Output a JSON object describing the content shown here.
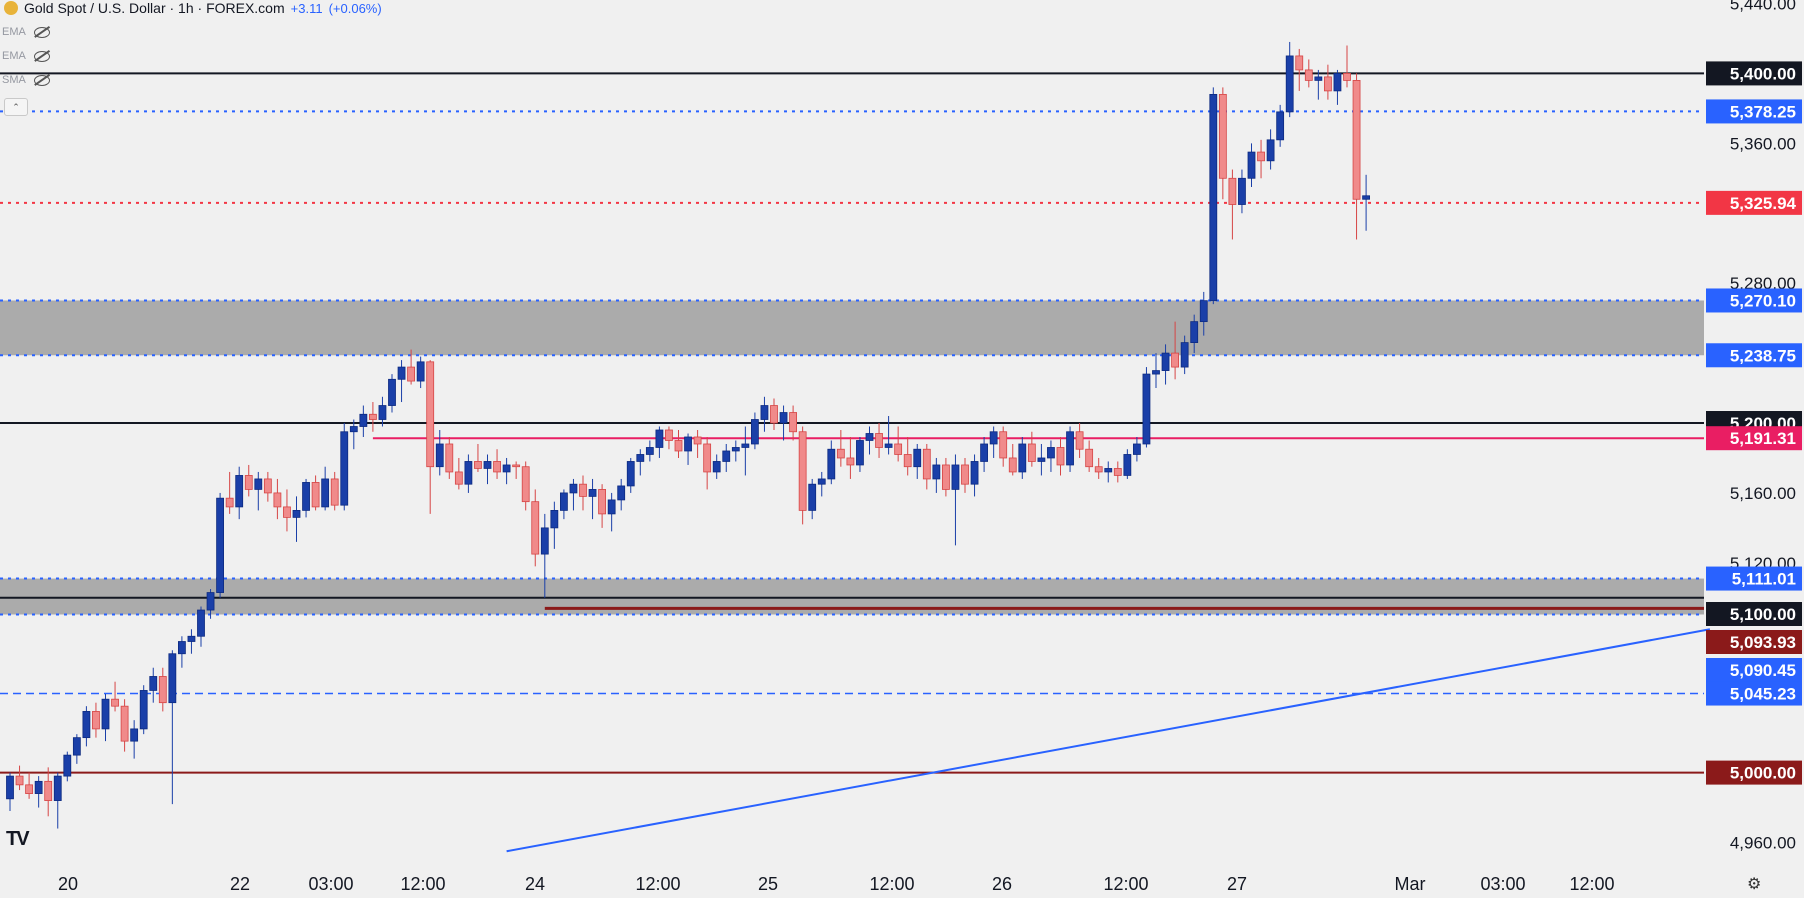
{
  "header": {
    "title": "Gold Spot / U.S. Dollar · 1h · FOREX.com",
    "change": "+3.11",
    "change_pct": "(+0.06%)"
  },
  "indicators": [
    {
      "label": "EMA",
      "icon": "eye-off-icon"
    },
    {
      "label": "EMA",
      "icon": "eye-off-icon"
    },
    {
      "label": "SMA",
      "icon": "eye-off-icon"
    }
  ],
  "icons": {
    "logo": "tradingview-logo",
    "settings": "gear-icon",
    "collapse": "chevron-up-down-icon"
  },
  "logo_text": "TV",
  "chart_data": {
    "type": "candlestick",
    "symbol": "Gold Spot / U.S. Dollar",
    "timeframe": "1h",
    "price_axis": {
      "ticks": [
        4960,
        5120,
        5160,
        5280,
        5360,
        5440
      ],
      "tick_labels": [
        "4,960.00",
        "5,120.00",
        "5,160.00",
        "5,280.00",
        "5,360.00",
        "5,440.00"
      ],
      "range": [
        4950,
        5442
      ]
    },
    "time_axis": {
      "labels": [
        "20",
        "22",
        "03:00",
        "12:00",
        "24",
        "12:00",
        "25",
        "12:00",
        "26",
        "12:00",
        "27",
        "Mar",
        "03:00",
        "12:00"
      ]
    },
    "levels": [
      {
        "value": 5400.0,
        "label": "5,400.00",
        "style": "solid",
        "color": "#131722",
        "badge_bg": "#131722"
      },
      {
        "value": 5378.25,
        "label": "5,378.25",
        "style": "dotted",
        "color": "#2962ff",
        "badge_bg": "#2962ff"
      },
      {
        "value": 5325.94,
        "label": "5,325.94",
        "style": "dotted",
        "color": "#f23645",
        "badge_bg": "#f23645"
      },
      {
        "value": 5270.1,
        "label": "5,270.10",
        "style": "dotted",
        "color": "#2962ff",
        "badge_bg": "#2962ff"
      },
      {
        "value": 5238.75,
        "label": "5,238.75",
        "style": "dotted",
        "color": "#2962ff",
        "badge_bg": "#2962ff"
      },
      {
        "value": 5200.0,
        "label": "5,200.00",
        "style": "solid",
        "color": "#131722",
        "badge_bg": "#131722"
      },
      {
        "value": 5191.31,
        "label": "5,191.31",
        "style": "solid",
        "color": "#e91e63",
        "badge_bg": "#e91e63"
      },
      {
        "value": 5111.01,
        "label": "5,111.01",
        "style": "dotted",
        "color": "#2962ff",
        "badge_bg": "#2962ff"
      },
      {
        "value": 5100.0,
        "label": "5,100.00",
        "style": "solid",
        "color": "#131722",
        "badge_bg": "#131722"
      },
      {
        "value": 5093.93,
        "label": "5,093.93",
        "style": "solid",
        "color": "#8b1a1a",
        "badge_bg": "#8b1a1a"
      },
      {
        "value": 5090.45,
        "label": "5,090.45",
        "style": "dotted",
        "color": "#2962ff",
        "badge_bg": "#2962ff"
      },
      {
        "value": 5045.23,
        "label": "5,045.23",
        "style": "dashed",
        "color": "#2962ff",
        "badge_bg": "#2962ff"
      },
      {
        "value": 5000.0,
        "label": "5,000.00",
        "style": "solid",
        "color": "#8b1a1a",
        "badge_bg": "#8b1a1a"
      }
    ],
    "zones": [
      {
        "from": 5238.75,
        "to": 5270.1,
        "color": "#a6a6a6"
      },
      {
        "from": 5090.45,
        "to": 5111.01,
        "color": "#a6a6a6"
      }
    ],
    "trendline": {
      "from_bar": 52,
      "from_price": 4955,
      "to_bar": 178,
      "to_price": 5082,
      "color": "#2962ff"
    },
    "ohlc": [
      [
        4985,
        5000,
        4978,
        4998
      ],
      [
        4998,
        5004,
        4990,
        4993
      ],
      [
        4993,
        5000,
        4985,
        4988
      ],
      [
        4988,
        4998,
        4980,
        4995
      ],
      [
        4995,
        5003,
        4975,
        4984
      ],
      [
        4984,
        5000,
        4968,
        4998
      ],
      [
        4998,
        5012,
        4995,
        5010
      ],
      [
        5010,
        5022,
        5005,
        5020
      ],
      [
        5020,
        5038,
        5015,
        5035
      ],
      [
        5035,
        5040,
        5020,
        5025
      ],
      [
        5025,
        5045,
        5018,
        5042
      ],
      [
        5042,
        5052,
        5035,
        5038
      ],
      [
        5038,
        5042,
        5012,
        5018
      ],
      [
        5018,
        5030,
        5008,
        5025
      ],
      [
        5025,
        5050,
        5022,
        5047
      ],
      [
        5047,
        5060,
        5040,
        5055
      ],
      [
        5055,
        5060,
        5035,
        5040
      ],
      [
        5040,
        5070,
        4982,
        5068
      ],
      [
        5068,
        5078,
        5060,
        5075
      ],
      [
        5075,
        5082,
        5068,
        5078
      ],
      [
        5078,
        5095,
        5072,
        5093
      ],
      [
        5093,
        5105,
        5088,
        5103
      ],
      [
        5103,
        5160,
        5100,
        5157
      ],
      [
        5157,
        5172,
        5148,
        5152
      ],
      [
        5152,
        5175,
        5145,
        5170
      ],
      [
        5170,
        5176,
        5158,
        5162
      ],
      [
        5162,
        5172,
        5150,
        5168
      ],
      [
        5168,
        5172,
        5155,
        5160
      ],
      [
        5160,
        5168,
        5145,
        5152
      ],
      [
        5152,
        5162,
        5138,
        5146
      ],
      [
        5146,
        5158,
        5132,
        5150
      ],
      [
        5150,
        5168,
        5146,
        5166
      ],
      [
        5166,
        5170,
        5150,
        5152
      ],
      [
        5152,
        5175,
        5150,
        5168
      ],
      [
        5168,
        5172,
        5150,
        5153
      ],
      [
        5153,
        5200,
        5150,
        5195
      ],
      [
        5195,
        5202,
        5185,
        5198
      ],
      [
        5198,
        5210,
        5192,
        5205
      ],
      [
        5205,
        5212,
        5195,
        5202
      ],
      [
        5202,
        5215,
        5198,
        5210
      ],
      [
        5210,
        5228,
        5206,
        5225
      ],
      [
        5225,
        5236,
        5212,
        5232
      ],
      [
        5232,
        5242,
        5222,
        5224
      ],
      [
        5224,
        5238,
        5220,
        5235
      ],
      [
        5235,
        5236,
        5148,
        5175
      ],
      [
        5175,
        5196,
        5170,
        5188
      ],
      [
        5188,
        5192,
        5168,
        5172
      ],
      [
        5172,
        5180,
        5162,
        5165
      ],
      [
        5165,
        5182,
        5160,
        5178
      ],
      [
        5178,
        5188,
        5172,
        5174
      ],
      [
        5174,
        5182,
        5165,
        5178
      ],
      [
        5178,
        5185,
        5168,
        5172
      ],
      [
        5172,
        5180,
        5165,
        5176
      ],
      [
        5176,
        5178,
        5168,
        5175
      ],
      [
        5175,
        5178,
        5150,
        5155
      ],
      [
        5155,
        5162,
        5118,
        5125
      ],
      [
        5125,
        5148,
        5100,
        5140
      ],
      [
        5140,
        5155,
        5128,
        5150
      ],
      [
        5150,
        5162,
        5145,
        5160
      ],
      [
        5160,
        5168,
        5150,
        5165
      ],
      [
        5165,
        5170,
        5150,
        5158
      ],
      [
        5158,
        5168,
        5145,
        5162
      ],
      [
        5162,
        5165,
        5140,
        5148
      ],
      [
        5148,
        5160,
        5138,
        5156
      ],
      [
        5156,
        5168,
        5150,
        5164
      ],
      [
        5164,
        5180,
        5160,
        5178
      ],
      [
        5178,
        5185,
        5170,
        5182
      ],
      [
        5182,
        5190,
        5178,
        5186
      ],
      [
        5186,
        5198,
        5180,
        5196
      ],
      [
        5196,
        5198,
        5185,
        5190
      ],
      [
        5190,
        5196,
        5180,
        5184
      ],
      [
        5184,
        5194,
        5176,
        5192
      ],
      [
        5192,
        5196,
        5180,
        5188
      ],
      [
        5188,
        5192,
        5162,
        5172
      ],
      [
        5172,
        5182,
        5168,
        5178
      ],
      [
        5178,
        5188,
        5172,
        5184
      ],
      [
        5184,
        5190,
        5178,
        5186
      ],
      [
        5186,
        5198,
        5170,
        5188
      ],
      [
        5188,
        5206,
        5185,
        5202
      ],
      [
        5202,
        5215,
        5195,
        5210
      ],
      [
        5210,
        5214,
        5196,
        5200
      ],
      [
        5200,
        5210,
        5190,
        5206
      ],
      [
        5206,
        5210,
        5190,
        5195
      ],
      [
        5195,
        5198,
        5142,
        5150
      ],
      [
        5150,
        5168,
        5145,
        5165
      ],
      [
        5165,
        5172,
        5158,
        5168
      ],
      [
        5168,
        5190,
        5165,
        5185
      ],
      [
        5185,
        5196,
        5175,
        5180
      ],
      [
        5180,
        5192,
        5168,
        5176
      ],
      [
        5176,
        5192,
        5172,
        5190
      ],
      [
        5190,
        5198,
        5182,
        5194
      ],
      [
        5194,
        5200,
        5180,
        5186
      ],
      [
        5186,
        5204,
        5182,
        5188
      ],
      [
        5188,
        5198,
        5178,
        5182
      ],
      [
        5182,
        5192,
        5170,
        5175
      ],
      [
        5175,
        5188,
        5168,
        5185
      ],
      [
        5185,
        5188,
        5162,
        5168
      ],
      [
        5168,
        5180,
        5160,
        5176
      ],
      [
        5176,
        5180,
        5158,
        5162
      ],
      [
        5162,
        5182,
        5130,
        5176
      ],
      [
        5176,
        5180,
        5160,
        5165
      ],
      [
        5165,
        5182,
        5158,
        5178
      ],
      [
        5178,
        5192,
        5172,
        5188
      ],
      [
        5188,
        5198,
        5180,
        5195
      ],
      [
        5195,
        5198,
        5175,
        5180
      ],
      [
        5180,
        5188,
        5170,
        5172
      ],
      [
        5172,
        5192,
        5168,
        5188
      ],
      [
        5188,
        5195,
        5175,
        5178
      ],
      [
        5178,
        5188,
        5170,
        5180
      ],
      [
        5180,
        5190,
        5172,
        5186
      ],
      [
        5186,
        5192,
        5170,
        5176
      ],
      [
        5176,
        5198,
        5172,
        5195
      ],
      [
        5195,
        5200,
        5180,
        5185
      ],
      [
        5185,
        5190,
        5172,
        5175
      ],
      [
        5175,
        5180,
        5168,
        5172
      ],
      [
        5172,
        5178,
        5166,
        5174
      ],
      [
        5174,
        5178,
        5166,
        5170
      ],
      [
        5170,
        5185,
        5168,
        5182
      ],
      [
        5182,
        5192,
        5178,
        5188
      ],
      [
        5188,
        5232,
        5186,
        5228
      ],
      [
        5228,
        5240,
        5220,
        5230
      ],
      [
        5230,
        5245,
        5222,
        5240
      ],
      [
        5240,
        5258,
        5225,
        5232
      ],
      [
        5232,
        5250,
        5228,
        5246
      ],
      [
        5246,
        5262,
        5240,
        5258
      ],
      [
        5258,
        5275,
        5250,
        5270
      ],
      [
        5270,
        5392,
        5268,
        5388
      ],
      [
        5388,
        5392,
        5328,
        5340
      ],
      [
        5340,
        5345,
        5305,
        5325
      ],
      [
        5325,
        5345,
        5320,
        5340
      ],
      [
        5340,
        5360,
        5335,
        5355
      ],
      [
        5355,
        5362,
        5340,
        5350
      ],
      [
        5350,
        5368,
        5345,
        5362
      ],
      [
        5362,
        5382,
        5358,
        5378
      ],
      [
        5378,
        5418,
        5375,
        5410
      ],
      [
        5410,
        5414,
        5390,
        5402
      ],
      [
        5402,
        5408,
        5392,
        5396
      ],
      [
        5396,
        5402,
        5385,
        5398
      ],
      [
        5398,
        5405,
        5385,
        5390
      ],
      [
        5390,
        5402,
        5382,
        5400
      ],
      [
        5400,
        5416,
        5392,
        5396
      ],
      [
        5396,
        5400,
        5305,
        5328
      ],
      [
        5328,
        5342,
        5310,
        5330
      ]
    ]
  }
}
